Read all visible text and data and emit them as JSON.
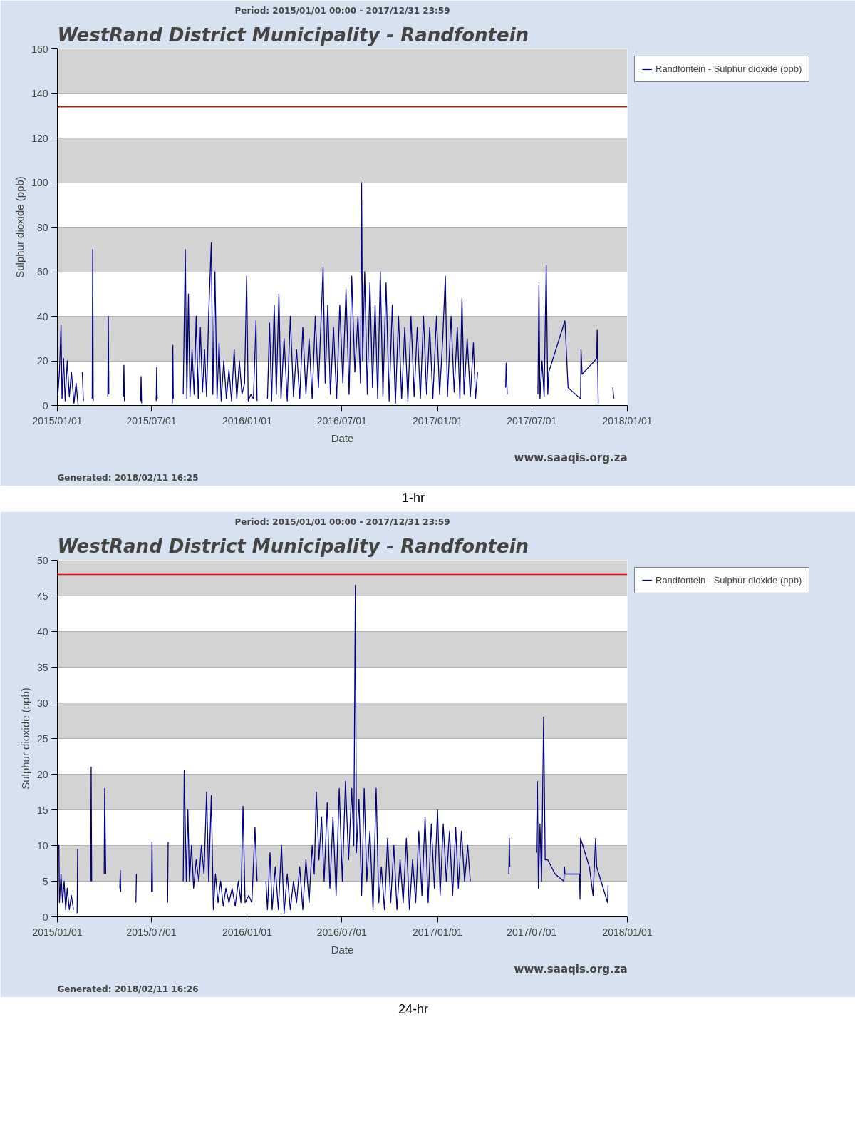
{
  "chart_data": [
    {
      "type": "line",
      "title": "WestRand District Municipality - Randfontein",
      "subtitle": "Period: 2015/01/01 00:00 - 2017/12/31 23:59",
      "xlabel": "Date",
      "ylabel": "Sulphur dioxide (ppb)",
      "legend": "top right",
      "grid": "y",
      "marker": "none",
      "line_style": "solid",
      "annotations": [
        "Generated: 2018/02/11 16:25",
        "www.saaqis.org.za",
        "1-hr"
      ],
      "xlim": [
        "2015-01-01",
        "2018-01-01"
      ],
      "xticks": [
        {
          "value": "2015-01-01",
          "label": "2015/01/01"
        },
        {
          "value": "2015-07-01",
          "label": "2015/07/01"
        },
        {
          "value": "2016-01-01",
          "label": "2016/01/01"
        },
        {
          "value": "2016-07-01",
          "label": "2016/07/01"
        },
        {
          "value": "2017-01-01",
          "label": "2017/01/01"
        },
        {
          "value": "2017-07-01",
          "label": "2017/07/01"
        },
        {
          "value": "2018-01-01",
          "label": "2018/01/01"
        }
      ],
      "ylim": [
        0,
        160
      ],
      "yticks": [
        0,
        20,
        40,
        60,
        80,
        100,
        120,
        140,
        160
      ],
      "ref_lines": [
        {
          "axis": "y",
          "value": 134,
          "label": null,
          "color": "#ff0000"
        }
      ],
      "x": [
        "2015-01-02",
        "2015-01-05",
        "2015-01-08",
        "2015-01-10",
        "2015-01-13",
        "2015-01-16",
        "2015-01-20",
        "2015-01-24",
        "2015-01-28",
        "2015-02-02",
        "2015-02-06",
        "2015-02-10",
        "2015-02-14",
        "2015-02-18",
        "2015-02-20",
        "2015-03-01",
        "2015-03-09",
        "2015-03-10",
        "2015-03-11",
        "2015-03-20",
        "2015-04-08",
        "2015-04-09",
        "2015-04-10",
        "2015-04-20",
        "2015-05-08",
        "2015-05-09",
        "2015-05-10",
        "2015-05-20",
        "2015-06-10",
        "2015-06-11",
        "2015-06-12",
        "2015-06-20",
        "2015-07-10",
        "2015-07-11",
        "2015-07-12",
        "2015-07-20",
        "2015-08-10",
        "2015-08-11",
        "2015-08-12",
        "2015-08-20",
        "2015-08-31",
        "2015-09-04",
        "2015-09-07",
        "2015-09-10",
        "2015-09-13",
        "2015-09-17",
        "2015-09-21",
        "2015-09-25",
        "2015-09-29",
        "2015-10-03",
        "2015-10-07",
        "2015-10-11",
        "2015-10-15",
        "2015-10-19",
        "2015-10-24",
        "2015-10-27",
        "2015-10-31",
        "2015-11-04",
        "2015-11-08",
        "2015-11-12",
        "2015-11-17",
        "2015-11-22",
        "2015-11-27",
        "2015-12-02",
        "2015-12-07",
        "2015-12-12",
        "2015-12-17",
        "2015-12-22",
        "2015-12-27",
        "2015-12-31",
        "2016-01-03",
        "2016-01-08",
        "2016-01-13",
        "2016-01-18",
        "2016-01-20",
        "2016-02-01",
        "2016-02-09",
        "2016-02-13",
        "2016-02-17",
        "2016-02-22",
        "2016-02-26",
        "2016-03-02",
        "2016-03-06",
        "2016-03-12",
        "2016-03-18",
        "2016-03-24",
        "2016-03-30",
        "2016-04-05",
        "2016-04-11",
        "2016-04-17",
        "2016-04-23",
        "2016-04-29",
        "2016-05-05",
        "2016-05-11",
        "2016-05-17",
        "2016-05-26",
        "2016-05-30",
        "2016-06-04",
        "2016-06-09",
        "2016-06-15",
        "2016-06-21",
        "2016-06-27",
        "2016-07-03",
        "2016-07-09",
        "2016-07-15",
        "2016-07-20",
        "2016-07-26",
        "2016-08-01",
        "2016-08-06",
        "2016-08-08",
        "2016-08-10",
        "2016-08-14",
        "2016-08-19",
        "2016-08-24",
        "2016-08-29",
        "2016-09-03",
        "2016-09-08",
        "2016-09-13",
        "2016-09-18",
        "2016-09-24",
        "2016-09-30",
        "2016-10-06",
        "2016-10-12",
        "2016-10-18",
        "2016-10-24",
        "2016-10-30",
        "2016-11-05",
        "2016-11-11",
        "2016-11-17",
        "2016-11-23",
        "2016-11-29",
        "2016-12-05",
        "2016-12-11",
        "2016-12-17",
        "2016-12-23",
        "2016-12-30",
        "2017-01-05",
        "2017-01-11",
        "2017-01-16",
        "2017-01-20",
        "2017-01-27",
        "2017-02-02",
        "2017-02-08",
        "2017-02-13",
        "2017-02-17",
        "2017-02-21",
        "2017-02-27",
        "2017-03-05",
        "2017-03-11",
        "2017-03-15",
        "2017-03-19",
        "2017-04-15",
        "2017-05-12",
        "2017-05-13",
        "2017-05-15",
        "2017-06-15",
        "2017-07-13",
        "2017-07-15",
        "2017-07-17",
        "2017-07-21",
        "2017-07-25",
        "2017-07-29",
        "2017-08-01",
        "2017-08-03",
        "2017-09-03",
        "2017-09-09",
        "2017-10-03",
        "2017-10-04",
        "2017-10-06",
        "2017-11-03",
        "2017-11-04",
        "2017-11-06",
        "2017-11-20",
        "2017-12-04",
        "2017-12-06"
      ],
      "series": [
        {
          "name": "Randfontein - Sulphur dioxide (ppb)",
          "color": "#000080",
          "values": [
            5,
            15,
            36,
            3,
            21,
            2,
            20,
            4,
            15,
            1,
            10,
            0,
            null,
            15,
            2,
            null,
            3,
            70,
            2,
            null,
            4,
            40,
            5,
            null,
            4,
            18,
            2,
            null,
            2,
            13,
            1,
            null,
            2,
            17,
            3,
            null,
            1,
            27,
            3,
            null,
            5,
            70,
            3,
            50,
            4,
            25,
            5,
            40,
            3,
            35,
            6,
            25,
            4,
            41,
            73,
            5,
            60,
            3,
            28,
            2,
            20,
            3,
            16,
            2,
            25,
            3,
            20,
            5,
            10,
            58,
            2,
            5,
            3,
            38,
            2,
            null,
            3,
            37,
            2,
            45,
            5,
            50,
            3,
            30,
            2,
            40,
            4,
            25,
            3,
            35,
            5,
            30,
            3,
            40,
            8,
            62,
            10,
            45,
            5,
            35,
            3,
            45,
            10,
            52,
            5,
            58,
            15,
            40,
            10,
            100,
            20,
            60,
            5,
            55,
            8,
            45,
            3,
            60,
            4,
            55,
            2,
            45,
            1,
            40,
            3,
            35,
            2,
            40,
            4,
            35,
            3,
            40,
            5,
            35,
            3,
            40,
            5,
            30,
            58,
            4,
            40,
            6,
            35,
            3,
            48,
            5,
            30,
            4,
            28,
            3,
            15,
            null,
            8,
            19,
            5,
            null,
            5,
            54,
            3,
            20,
            4,
            63,
            5,
            15,
            38,
            8,
            3,
            25,
            14,
            21,
            34,
            1,
            null,
            8,
            3
          ]
        }
      ]
    },
    {
      "type": "line",
      "title": "WestRand District Municipality - Randfontein",
      "subtitle": "Period: 2015/01/01 00:00 - 2017/12/31 23:59",
      "xlabel": "Date",
      "ylabel": "Sulphur dioxide (ppb)",
      "legend": "top right",
      "grid": "y",
      "marker": "none",
      "line_style": "solid",
      "annotations": [
        "Generated: 2018/02/11 16:26",
        "www.saaqis.org.za",
        "24-hr"
      ],
      "xlim": [
        "2015-01-01",
        "2018-01-01"
      ],
      "xticks": [
        {
          "value": "2015-01-01",
          "label": "2015/01/01"
        },
        {
          "value": "2015-07-01",
          "label": "2015/07/01"
        },
        {
          "value": "2016-01-01",
          "label": "2016/01/01"
        },
        {
          "value": "2016-07-01",
          "label": "2016/07/01"
        },
        {
          "value": "2017-01-01",
          "label": "2017/01/01"
        },
        {
          "value": "2017-07-01",
          "label": "2017/07/01"
        },
        {
          "value": "2018-01-01",
          "label": "2018/01/01"
        }
      ],
      "ylim": [
        0,
        50
      ],
      "yticks": [
        0,
        5,
        10,
        15,
        20,
        25,
        30,
        35,
        40,
        45,
        50
      ],
      "ref_lines": [
        {
          "axis": "y",
          "value": 48,
          "label": null,
          "color": "#ff0000"
        }
      ],
      "x": [
        "2015-01-01",
        "2015-01-04",
        "2015-01-05",
        "2015-01-08",
        "2015-01-11",
        "2015-01-14",
        "2015-01-17",
        "2015-01-20",
        "2015-01-24",
        "2015-01-28",
        "2015-02-01",
        "2015-02-04",
        "2015-02-08",
        "2015-02-09",
        "2015-02-20",
        "2015-03-06",
        "2015-03-07",
        "2015-03-08",
        "2015-03-20",
        "2015-04-01",
        "2015-04-02",
        "2015-04-04",
        "2015-04-20",
        "2015-05-01",
        "2015-05-02",
        "2015-05-03",
        "2015-05-20",
        "2015-06-01",
        "2015-06-02",
        "2015-06-20",
        "2015-07-01",
        "2015-07-02",
        "2015-07-03",
        "2015-07-20",
        "2015-08-01",
        "2015-08-02",
        "2015-08-20",
        "2015-08-31",
        "2015-09-02",
        "2015-09-06",
        "2015-09-09",
        "2015-09-12",
        "2015-09-16",
        "2015-09-20",
        "2015-09-25",
        "2015-09-30",
        "2015-10-05",
        "2015-10-10",
        "2015-10-15",
        "2015-10-19",
        "2015-10-24",
        "2015-10-28",
        "2015-11-01",
        "2015-11-06",
        "2015-11-11",
        "2015-11-16",
        "2015-11-21",
        "2015-11-27",
        "2015-12-03",
        "2015-12-09",
        "2015-12-15",
        "2015-12-20",
        "2015-12-24",
        "2015-12-28",
        "2016-01-04",
        "2016-01-10",
        "2016-01-16",
        "2016-01-20",
        "2016-01-30",
        "2016-02-06",
        "2016-02-09",
        "2016-02-14",
        "2016-02-18",
        "2016-02-24",
        "2016-03-01",
        "2016-03-07",
        "2016-03-12",
        "2016-03-18",
        "2016-03-24",
        "2016-03-30",
        "2016-04-05",
        "2016-04-11",
        "2016-04-17",
        "2016-04-23",
        "2016-04-29",
        "2016-05-05",
        "2016-05-09",
        "2016-05-13",
        "2016-05-18",
        "2016-05-23",
        "2016-05-28",
        "2016-06-03",
        "2016-06-08",
        "2016-06-14",
        "2016-06-20",
        "2016-06-26",
        "2016-07-02",
        "2016-07-08",
        "2016-07-14",
        "2016-07-20",
        "2016-07-24",
        "2016-07-27",
        "2016-07-29",
        "2016-08-03",
        "2016-08-08",
        "2016-08-13",
        "2016-08-18",
        "2016-08-24",
        "2016-08-30",
        "2016-09-05",
        "2016-09-10",
        "2016-09-15",
        "2016-09-21",
        "2016-09-27",
        "2016-10-03",
        "2016-10-09",
        "2016-10-15",
        "2016-10-21",
        "2016-10-27",
        "2016-11-02",
        "2016-11-08",
        "2016-11-14",
        "2016-11-20",
        "2016-11-26",
        "2016-12-02",
        "2016-12-08",
        "2016-12-14",
        "2016-12-20",
        "2016-12-26",
        "2017-01-01",
        "2017-01-06",
        "2017-01-12",
        "2017-01-18",
        "2017-01-24",
        "2017-01-30",
        "2017-02-05",
        "2017-02-10",
        "2017-02-16",
        "2017-02-22",
        "2017-02-28",
        "2017-03-05",
        "2017-04-15",
        "2017-05-18",
        "2017-05-19",
        "2017-05-20",
        "2017-06-15",
        "2017-07-10",
        "2017-07-12",
        "2017-07-14",
        "2017-07-17",
        "2017-07-20",
        "2017-07-24",
        "2017-07-27",
        "2017-08-01",
        "2017-08-15",
        "2017-09-01",
        "2017-09-02",
        "2017-09-03",
        "2017-10-01",
        "2017-10-02",
        "2017-10-03",
        "2017-10-20",
        "2017-10-27",
        "2017-11-01",
        "2017-11-03",
        "2017-11-24",
        "2017-11-25"
      ],
      "series": [
        {
          "name": "Randfontein - Sulphur dioxide (ppb)",
          "color": "#000080",
          "values": [
            10,
            10,
            2,
            6,
            2,
            5,
            1,
            4,
            1,
            3,
            1,
            null,
            0.5,
            9.5,
            null,
            5,
            21,
            5,
            null,
            6,
            18,
            6,
            null,
            4,
            6.5,
            3.5,
            null,
            2,
            6,
            null,
            3.5,
            10.5,
            3.5,
            null,
            2,
            10.5,
            null,
            5,
            20.5,
            5,
            15,
            5,
            10,
            4,
            8,
            5,
            10,
            6,
            17.5,
            5,
            17,
            1,
            6,
            2,
            5,
            1.5,
            4,
            2,
            4,
            1.5,
            5,
            2,
            15.5,
            2,
            3,
            2,
            12.5,
            5,
            null,
            5,
            1,
            9,
            1,
            7,
            1,
            10,
            0.5,
            6,
            1,
            5,
            2,
            7,
            1,
            8,
            2,
            10,
            6,
            17.5,
            8,
            14,
            5,
            16,
            4,
            14,
            3,
            18,
            5,
            19,
            8,
            18,
            10,
            46.5,
            9,
            16.5,
            3,
            18,
            5,
            12,
            1,
            18,
            2,
            7,
            1,
            11,
            2,
            10,
            1,
            8,
            2,
            11,
            1,
            8,
            2,
            12,
            3,
            14,
            2,
            13,
            4,
            15,
            3,
            13,
            5,
            12,
            3,
            12.5,
            4,
            12,
            5,
            10,
            5,
            null,
            6,
            11,
            7,
            null,
            9,
            19,
            4,
            13,
            5,
            28,
            8,
            8,
            6,
            5,
            7,
            6,
            6,
            2.5,
            11,
            7,
            3,
            11,
            7,
            2,
            4.5
          ]
        }
      ]
    }
  ]
}
